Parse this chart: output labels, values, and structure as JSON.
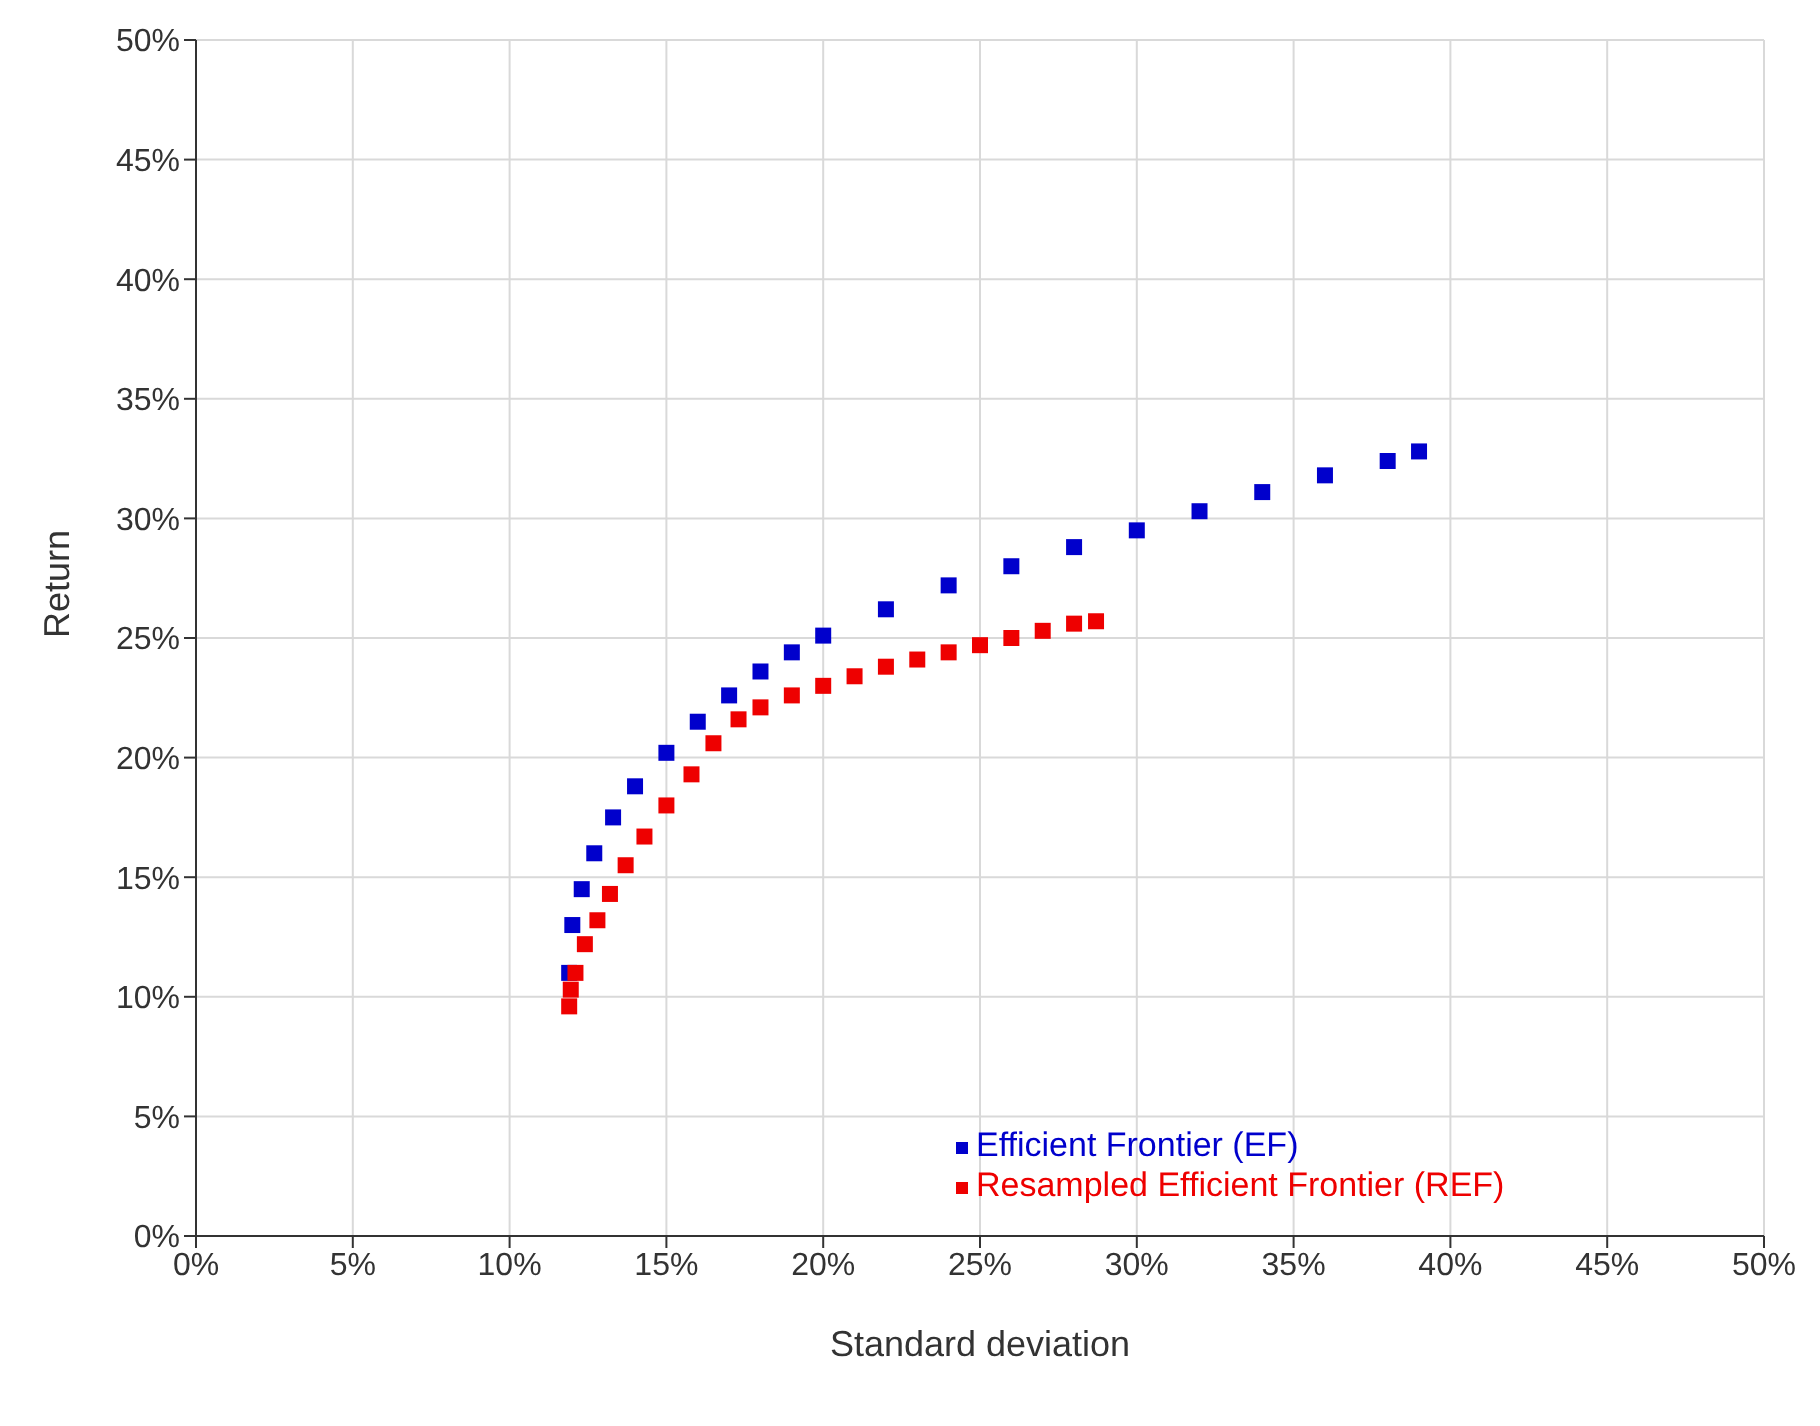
{
  "chart_data": {
    "type": "scatter",
    "xlabel": "Standard deviation",
    "ylabel": "Return",
    "xlim": [
      0,
      50
    ],
    "ylim": [
      0,
      50
    ],
    "xticks": [
      {
        "value": 0,
        "label": "0%"
      },
      {
        "value": 5,
        "label": "5%"
      },
      {
        "value": 10,
        "label": "10%"
      },
      {
        "value": 15,
        "label": "15%"
      },
      {
        "value": 20,
        "label": "20%"
      },
      {
        "value": 25,
        "label": "25%"
      },
      {
        "value": 30,
        "label": "30%"
      },
      {
        "value": 35,
        "label": "35%"
      },
      {
        "value": 40,
        "label": "40%"
      },
      {
        "value": 45,
        "label": "45%"
      },
      {
        "value": 50,
        "label": "50%"
      }
    ],
    "yticks": [
      {
        "value": 0,
        "label": "0%"
      },
      {
        "value": 5,
        "label": "5%"
      },
      {
        "value": 10,
        "label": "10%"
      },
      {
        "value": 15,
        "label": "15%"
      },
      {
        "value": 20,
        "label": "20%"
      },
      {
        "value": 25,
        "label": "25%"
      },
      {
        "value": 30,
        "label": "30%"
      },
      {
        "value": 35,
        "label": "35%"
      },
      {
        "value": 40,
        "label": "40%"
      },
      {
        "value": 45,
        "label": "45%"
      },
      {
        "value": 50,
        "label": "50%"
      }
    ],
    "grid": true,
    "legend": "bottom right",
    "marker": "square",
    "series": [
      {
        "name": "Efficient Frontier (EF)",
        "color": "#0000cc",
        "x": [
          11.9,
          12.0,
          12.3,
          12.7,
          13.3,
          14,
          15,
          16,
          17,
          18,
          19,
          20,
          22,
          24,
          26,
          28,
          30,
          32,
          34,
          36,
          38,
          39
        ],
        "values": [
          11.0,
          13,
          14.5,
          16,
          17.5,
          18.8,
          20.2,
          21.5,
          22.6,
          23.6,
          24.4,
          25.1,
          26.2,
          27.2,
          28.0,
          28.8,
          29.5,
          30.3,
          31.1,
          31.8,
          32.4,
          32.8
        ]
      },
      {
        "name": "Resampled Efficient Frontier (REF)",
        "color": "#ee0000",
        "x": [
          11.9,
          11.95,
          12.1,
          12.4,
          12.8,
          13.2,
          13.7,
          14.3,
          15,
          15.8,
          16.5,
          17.3,
          18,
          19,
          20,
          21,
          22,
          23,
          24,
          25,
          26,
          27,
          28,
          28.7
        ],
        "values": [
          9.6,
          10.3,
          11.0,
          12.2,
          13.2,
          14.3,
          15.5,
          16.7,
          18,
          19.3,
          20.6,
          21.6,
          22.1,
          22.6,
          23.0,
          23.4,
          23.8,
          24.1,
          24.4,
          24.7,
          25.0,
          25.3,
          25.6,
          25.7
        ]
      }
    ]
  }
}
